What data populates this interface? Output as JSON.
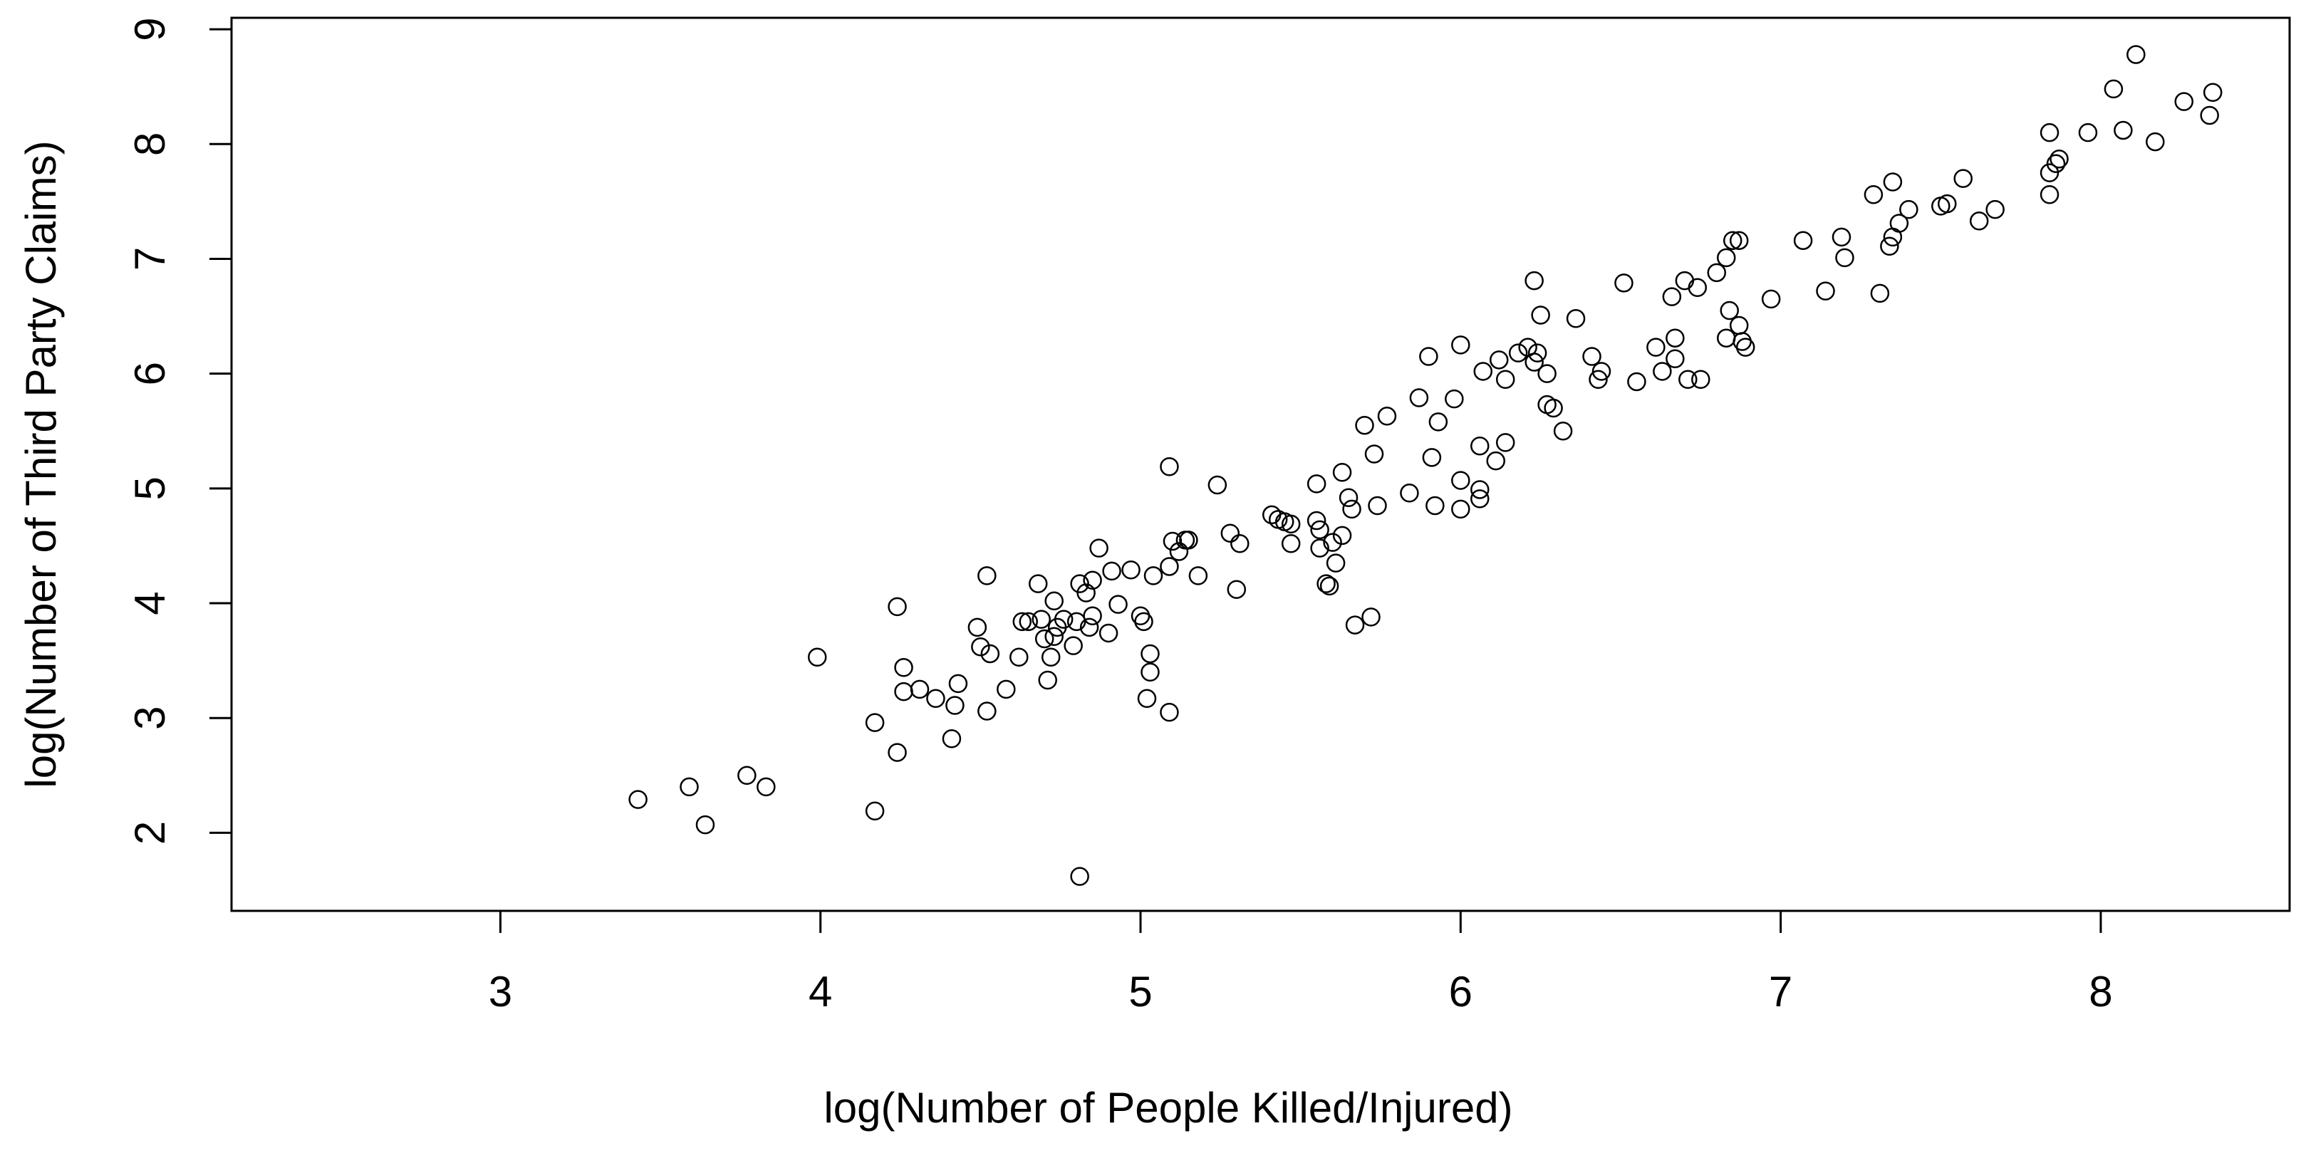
{
  "chart_data": {
    "type": "scatter",
    "x_label": "log(Number of People Killed/Injured)",
    "y_label": "log(Number of Third Party Claims)",
    "xlim": [
      2.16,
      8.59
    ],
    "ylim": [
      1.32,
      9.1
    ],
    "xticks": [
      3,
      4,
      5,
      6,
      7,
      8
    ],
    "yticks": [
      2,
      3,
      4,
      5,
      6,
      7,
      8,
      9
    ],
    "color": "#000000",
    "x": [
      3.43,
      3.59,
      3.64,
      3.77,
      3.83,
      3.99,
      4.17,
      4.17,
      4.24,
      4.24,
      4.26,
      4.26,
      4.31,
      4.36,
      4.41,
      4.42,
      4.43,
      4.49,
      4.5,
      4.52,
      4.52,
      4.53,
      4.58,
      4.62,
      4.63,
      4.65,
      4.68,
      4.69,
      4.7,
      4.71,
      4.72,
      4.73,
      4.73,
      4.74,
      4.76,
      4.79,
      4.8,
      4.81,
      4.81,
      4.83,
      4.84,
      4.85,
      4.85,
      4.87,
      4.9,
      4.91,
      4.93,
      4.97,
      5.0,
      5.01,
      5.02,
      5.03,
      5.03,
      5.04,
      5.09,
      5.09,
      5.09,
      5.1,
      5.12,
      5.14,
      5.15,
      5.18,
      5.24,
      5.28,
      5.3,
      5.31,
      5.41,
      5.43,
      5.45,
      5.47,
      5.47,
      5.55,
      5.55,
      5.56,
      5.56,
      5.58,
      5.59,
      5.6,
      5.61,
      5.63,
      5.63,
      5.65,
      5.66,
      5.67,
      5.7,
      5.72,
      5.73,
      5.74,
      5.77,
      5.84,
      5.87,
      5.9,
      5.91,
      5.92,
      5.93,
      5.98,
      6.0,
      6.0,
      6.0,
      6.06,
      6.06,
      6.06,
      6.07,
      6.11,
      6.12,
      6.14,
      6.14,
      6.18,
      6.21,
      6.23,
      6.23,
      6.24,
      6.25,
      6.27,
      6.27,
      6.29,
      6.32,
      6.36,
      6.41,
      6.43,
      6.44,
      6.51,
      6.55,
      6.61,
      6.63,
      6.66,
      6.67,
      6.67,
      6.7,
      6.71,
      6.74,
      6.75,
      6.8,
      6.83,
      6.83,
      6.84,
      6.85,
      6.87,
      6.87,
      6.88,
      6.89,
      6.97,
      7.07,
      7.14,
      7.19,
      7.2,
      7.29,
      7.31,
      7.34,
      7.35,
      7.35,
      7.37,
      7.4,
      7.5,
      7.52,
      7.57,
      7.62,
      7.67,
      7.84,
      7.84,
      7.84,
      7.86,
      7.87,
      7.96,
      8.04,
      8.07,
      8.11,
      8.17,
      8.26,
      8.34,
      8.35
    ],
    "y": [
      2.29,
      2.4,
      2.07,
      2.5,
      2.4,
      3.53,
      2.96,
      2.19,
      3.97,
      2.7,
      3.44,
      3.23,
      3.25,
      3.17,
      2.82,
      3.11,
      3.3,
      3.79,
      3.62,
      4.24,
      3.06,
      3.56,
      3.25,
      3.53,
      3.84,
      3.84,
      4.17,
      3.86,
      3.69,
      3.33,
      3.53,
      4.02,
      3.71,
      3.79,
      3.86,
      3.63,
      3.84,
      4.17,
      1.62,
      4.09,
      3.79,
      4.2,
      3.89,
      4.48,
      3.74,
      4.28,
      3.99,
      4.29,
      3.89,
      3.84,
      3.17,
      3.56,
      3.4,
      4.24,
      5.19,
      4.32,
      3.05,
      4.54,
      4.45,
      4.55,
      4.55,
      4.24,
      5.03,
      4.61,
      4.12,
      4.52,
      4.77,
      4.73,
      4.71,
      4.52,
      4.69,
      5.04,
      4.72,
      4.64,
      4.48,
      4.17,
      4.15,
      4.53,
      4.35,
      4.59,
      5.14,
      4.92,
      4.82,
      3.81,
      5.55,
      3.88,
      5.3,
      4.85,
      5.63,
      4.96,
      5.79,
      6.15,
      5.27,
      4.85,
      5.58,
      5.78,
      6.25,
      5.07,
      4.82,
      5.37,
      4.91,
      4.99,
      6.02,
      5.24,
      6.12,
      5.95,
      5.4,
      6.18,
      6.23,
      6.81,
      6.1,
      6.18,
      6.51,
      6.0,
      5.73,
      5.7,
      5.5,
      6.48,
      6.15,
      5.95,
      6.02,
      6.79,
      5.93,
      6.23,
      6.02,
      6.67,
      6.31,
      6.13,
      6.81,
      5.95,
      6.75,
      5.95,
      6.88,
      6.31,
      7.01,
      6.55,
      7.16,
      7.16,
      6.42,
      6.28,
      6.23,
      6.65,
      7.16,
      6.72,
      7.19,
      7.01,
      7.56,
      6.7,
      7.11,
      7.67,
      7.19,
      7.31,
      7.43,
      7.46,
      7.48,
      7.7,
      7.33,
      7.43,
      8.1,
      7.56,
      7.75,
      7.83,
      7.87,
      8.1,
      8.48,
      8.12,
      8.78,
      8.02,
      8.37,
      8.25,
      8.45
    ]
  }
}
